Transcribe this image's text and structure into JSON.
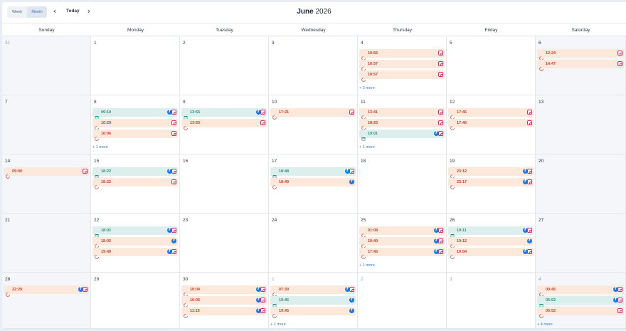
{
  "toolbar": {
    "view_week": "Week",
    "view_month": "Month",
    "today": "Today",
    "prev_icon": "chevron-left-icon",
    "next_icon": "chevron-right-icon"
  },
  "title": {
    "month": "June",
    "year": "2026"
  },
  "weekdays": [
    "Sunday",
    "Monday",
    "Tuesday",
    "Wednesday",
    "Thursday",
    "Friday",
    "Saturday"
  ],
  "colors": {
    "scheduled_bg": "#fde8dc",
    "scheduled_text": "#c2452f",
    "published_bg": "#dcefec",
    "published_text": "#2f8f7e",
    "instagram": "#d4306c",
    "facebook": "#1877f2",
    "accent": "#3a78c9"
  },
  "weeks": [
    [
      {
        "day": "31",
        "muted": true,
        "events": []
      },
      {
        "day": "1",
        "events": []
      },
      {
        "day": "2",
        "events": []
      },
      {
        "day": "3",
        "events": []
      },
      {
        "day": "4",
        "events": [
          {
            "time": "10:56",
            "kind": "scheduled",
            "platforms": [
              "ig"
            ]
          },
          {
            "time": "10:57",
            "kind": "scheduled",
            "platforms": [
              "ig"
            ]
          },
          {
            "time": "10:57",
            "kind": "scheduled",
            "platforms": [
              "ig"
            ]
          }
        ],
        "more": "+ 2 more"
      },
      {
        "day": "5",
        "events": []
      },
      {
        "day": "6",
        "events": [
          {
            "time": "12:24",
            "kind": "scheduled",
            "platforms": [
              "ig"
            ]
          },
          {
            "time": "14:47",
            "kind": "scheduled",
            "platforms": [
              "ig"
            ]
          }
        ]
      }
    ],
    [
      {
        "day": "7",
        "events": []
      },
      {
        "day": "8",
        "events": [
          {
            "time": "09:10",
            "kind": "published",
            "platforms": [
              "fb",
              "ig"
            ]
          },
          {
            "time": "10:29",
            "kind": "scheduled",
            "platforms": [
              "ig"
            ]
          },
          {
            "time": "16:06",
            "kind": "scheduled",
            "platforms": [
              "ig"
            ]
          }
        ],
        "more": "+ 1 more"
      },
      {
        "day": "9",
        "events": [
          {
            "time": "13:55",
            "kind": "published",
            "platforms": [
              "fb",
              "ig"
            ]
          },
          {
            "time": "13:55",
            "kind": "scheduled",
            "platforms": [
              "ig"
            ]
          }
        ]
      },
      {
        "day": "10",
        "events": [
          {
            "time": "17:21",
            "kind": "scheduled",
            "platforms": [
              "ig"
            ]
          }
        ]
      },
      {
        "day": "11",
        "events": [
          {
            "time": "13:41",
            "kind": "scheduled",
            "platforms": [
              "ig"
            ]
          },
          {
            "time": "18:25",
            "kind": "scheduled",
            "platforms": [
              "ig"
            ]
          },
          {
            "time": "19:01",
            "kind": "published",
            "platforms": [
              "fb",
              "ig"
            ]
          }
        ],
        "more": "+ 1 more"
      },
      {
        "day": "12",
        "events": [
          {
            "time": "17:46",
            "kind": "scheduled",
            "platforms": [
              "ig"
            ]
          },
          {
            "time": "17:46",
            "kind": "scheduled",
            "platforms": [
              "ig"
            ]
          }
        ]
      },
      {
        "day": "13",
        "events": []
      }
    ],
    [
      {
        "day": "14",
        "events": [
          {
            "time": "09:00",
            "kind": "scheduled",
            "platforms": [
              "ig"
            ]
          }
        ]
      },
      {
        "day": "15",
        "events": [
          {
            "time": "18:22",
            "kind": "published",
            "platforms": [
              "fb",
              "ig"
            ]
          },
          {
            "time": "18:22",
            "kind": "scheduled",
            "platforms": [
              "ig"
            ]
          }
        ]
      },
      {
        "day": "16",
        "events": []
      },
      {
        "day": "17",
        "events": [
          {
            "time": "18:48",
            "kind": "published",
            "platforms": [
              "fb",
              "ig"
            ]
          },
          {
            "time": "18:49",
            "kind": "scheduled",
            "platforms": [
              "fb"
            ]
          }
        ]
      },
      {
        "day": "18",
        "events": []
      },
      {
        "day": "19",
        "events": [
          {
            "time": "23:12",
            "kind": "scheduled",
            "platforms": [
              "fb",
              "ig"
            ]
          },
          {
            "time": "23:17",
            "kind": "scheduled",
            "platforms": [
              "fb",
              "ig"
            ]
          }
        ]
      },
      {
        "day": "20",
        "events": []
      }
    ],
    [
      {
        "day": "21",
        "events": []
      },
      {
        "day": "22",
        "events": [
          {
            "time": "18:02",
            "kind": "published",
            "platforms": [
              "fb",
              "ig"
            ]
          },
          {
            "time": "18:02",
            "kind": "scheduled",
            "platforms": [
              "fb"
            ]
          },
          {
            "time": "19:49",
            "kind": "scheduled",
            "platforms": [
              "fb",
              "ig"
            ]
          }
        ]
      },
      {
        "day": "23",
        "events": []
      },
      {
        "day": "24",
        "events": []
      },
      {
        "day": "25",
        "events": [
          {
            "time": "01:08",
            "kind": "scheduled",
            "platforms": [
              "fb",
              "ig"
            ]
          },
          {
            "time": "10:40",
            "kind": "scheduled",
            "platforms": [
              "fb",
              "ig"
            ]
          },
          {
            "time": "17:45",
            "kind": "scheduled",
            "platforms": [
              "fb",
              "ig"
            ]
          }
        ],
        "more": "+ 1 more"
      },
      {
        "day": "26",
        "events": [
          {
            "time": "19:11",
            "kind": "published",
            "platforms": [
              "fb",
              "ig"
            ]
          },
          {
            "time": "19:12",
            "kind": "scheduled",
            "platforms": [
              "fb"
            ]
          },
          {
            "time": "19:54",
            "kind": "scheduled",
            "platforms": [
              "fb",
              "ig"
            ]
          }
        ]
      },
      {
        "day": "27",
        "events": []
      }
    ],
    [
      {
        "day": "28",
        "events": [
          {
            "time": "22:29",
            "kind": "scheduled",
            "platforms": [
              "fb",
              "ig"
            ]
          }
        ]
      },
      {
        "day": "29",
        "events": []
      },
      {
        "day": "30",
        "events": [
          {
            "time": "10:04",
            "kind": "scheduled",
            "platforms": [
              "fb",
              "ig"
            ]
          },
          {
            "time": "10:06",
            "kind": "scheduled",
            "platforms": [
              "fb",
              "ig"
            ]
          },
          {
            "time": "11:15",
            "kind": "scheduled",
            "platforms": [
              "fb",
              "ig"
            ]
          }
        ]
      },
      {
        "day": "1",
        "muted": true,
        "events": [
          {
            "time": "07:39",
            "kind": "scheduled",
            "platforms": [
              "fb",
              "ig"
            ]
          },
          {
            "time": "19:45",
            "kind": "published",
            "platforms": [
              "fb"
            ]
          },
          {
            "time": "19:45",
            "kind": "scheduled",
            "platforms": [
              "fb"
            ]
          }
        ],
        "more": "+ 1 more"
      },
      {
        "day": "2",
        "muted": true,
        "events": []
      },
      {
        "day": "3",
        "muted": true,
        "events": []
      },
      {
        "day": "4",
        "muted": true,
        "events": [
          {
            "time": "00:45",
            "kind": "scheduled",
            "platforms": [
              "fb",
              "ig"
            ]
          },
          {
            "time": "05:52",
            "kind": "published",
            "platforms": [
              "fb",
              "ig"
            ]
          },
          {
            "time": "05:52",
            "kind": "scheduled",
            "platforms": [
              "ig"
            ]
          }
        ],
        "more": "+ 4 more"
      }
    ]
  ]
}
